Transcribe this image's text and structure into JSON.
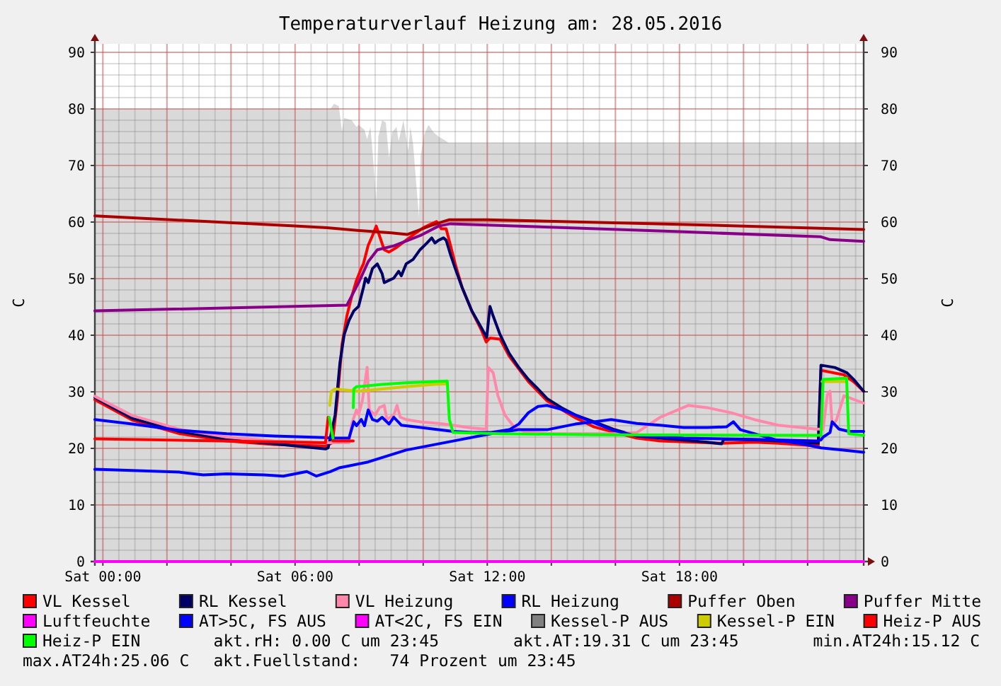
{
  "chart_data": {
    "type": "line",
    "title": "Temperaturverlauf Heizung am: 28.05.2016",
    "ylabel": "C",
    "y2label": "C",
    "xlim": [
      "2016-05-27T23:45",
      "2016-05-28T23:45"
    ],
    "xticks": [
      {
        "value": "2016-05-28T00:00",
        "label": "Sat 00:00"
      },
      {
        "value": "2016-05-28T02:00",
        "label": null
      },
      {
        "value": "2016-05-28T04:00",
        "label": null
      },
      {
        "value": "2016-05-28T06:00",
        "label": "Sat 06:00"
      },
      {
        "value": "2016-05-28T08:00",
        "label": null
      },
      {
        "value": "2016-05-28T10:00",
        "label": null
      },
      {
        "value": "2016-05-28T12:00",
        "label": "Sat 12:00"
      },
      {
        "value": "2016-05-28T14:00",
        "label": null
      },
      {
        "value": "2016-05-28T16:00",
        "label": null
      },
      {
        "value": "2016-05-28T18:00",
        "label": "Sat 18:00"
      },
      {
        "value": "2016-05-28T20:00",
        "label": null
      },
      {
        "value": "2016-05-28T22:00",
        "label": null
      }
    ],
    "ylim": [
      0,
      91.5
    ],
    "yticks": [
      0,
      10,
      20,
      30,
      40,
      50,
      60,
      70,
      80,
      90
    ],
    "y2lim": [
      0,
      91.5
    ],
    "y2ticks": [
      0,
      10,
      20,
      30,
      40,
      50,
      60,
      70,
      80,
      90
    ],
    "grid": true,
    "legend": "bottom",
    "series": [
      {
        "type": "area",
        "color": "#d9d9d9",
        "x": [
          "2016-05-27T23:45",
          "2016-05-28T07:06",
          "2016-05-28T07:13",
          "2016-05-28T07:22",
          "2016-05-28T07:28",
          "2016-05-28T07:32",
          "2016-05-28T07:46",
          "2016-05-28T07:55",
          "2016-05-28T07:59",
          "2016-05-28T08:10",
          "2016-05-28T08:15",
          "2016-05-28T08:21",
          "2016-05-28T08:25",
          "2016-05-28T08:32",
          "2016-05-28T08:36",
          "2016-05-28T08:43",
          "2016-05-28T08:50",
          "2016-05-28T08:56",
          "2016-05-28T09:02",
          "2016-05-28T09:10",
          "2016-05-28T09:14",
          "2016-05-28T09:23",
          "2016-05-28T09:32",
          "2016-05-28T09:36",
          "2016-05-28T09:41",
          "2016-05-28T09:47",
          "2016-05-28T09:52",
          "2016-05-28T09:55",
          "2016-05-28T10:02",
          "2016-05-28T10:10",
          "2016-05-28T10:19",
          "2016-05-28T10:29",
          "2016-05-28T10:43",
          "2016-05-28T10:47",
          "2016-05-28T23:42"
        ],
        "values": [
          80,
          80,
          80.9,
          80.5,
          75.9,
          78.4,
          78,
          76.8,
          77.2,
          76.3,
          74.6,
          76.8,
          72.6,
          63.8,
          75.1,
          78,
          77.6,
          71.3,
          75.9,
          76.8,
          74.3,
          78,
          72.6,
          76.8,
          73.8,
          66.8,
          60.9,
          71.7,
          75.5,
          77.2,
          75.9,
          75.1,
          74.3,
          74,
          74
        ]
      },
      {
        "name": "VL Kessel",
        "color": "#ff0000",
        "x": [
          "2016-05-27T23:45",
          "2016-05-28T00:55",
          "2016-05-28T02:23",
          "2016-05-28T03:52",
          "2016-05-28T05:20",
          "2016-05-28T06:57",
          "2016-05-28T07:10",
          "2016-05-28T07:19",
          "2016-05-28T07:28",
          "2016-05-28T07:37",
          "2016-05-28T07:46",
          "2016-05-28T07:55",
          "2016-05-28T08:04",
          "2016-05-28T08:08",
          "2016-05-28T08:17",
          "2016-05-28T08:25",
          "2016-05-28T08:32",
          "2016-05-28T08:38",
          "2016-05-28T08:47",
          "2016-05-28T08:56",
          "2016-05-28T09:10",
          "2016-05-28T09:28",
          "2016-05-28T09:45",
          "2016-05-28T10:02",
          "2016-05-28T10:16",
          "2016-05-28T10:25",
          "2016-05-28T10:34",
          "2016-05-28T10:43",
          "2016-05-28T10:51",
          "2016-05-28T11:00",
          "2016-05-28T11:13",
          "2016-05-28T11:31",
          "2016-05-28T11:49",
          "2016-05-28T11:58",
          "2016-05-28T12:05",
          "2016-05-28T12:24",
          "2016-05-28T12:41",
          "2016-05-28T13:17",
          "2016-05-28T13:52",
          "2016-05-28T14:45",
          "2016-05-28T15:20",
          "2016-05-28T16:40",
          "2016-05-28T17:24",
          "2016-05-28T19:19",
          "2016-05-28T20:20",
          "2016-05-28T21:05",
          "2016-05-28T22:07",
          "2016-05-28T22:20",
          "2016-05-28T22:25",
          "2016-05-28T23:08",
          "2016-05-28T23:26",
          "2016-05-28T23:45"
        ],
        "values": [
          28.6,
          25.0,
          22.6,
          21.3,
          20.7,
          20.4,
          21.0,
          28.4,
          38.4,
          43.4,
          46.8,
          49.7,
          51.8,
          52.6,
          55.9,
          57.6,
          59.3,
          57.6,
          55.1,
          54.7,
          55.5,
          56.8,
          58.0,
          59.1,
          59.7,
          60.1,
          58.8,
          58.8,
          55.9,
          52.6,
          48.4,
          44.3,
          40.9,
          38.8,
          39.5,
          39.3,
          36.3,
          31.8,
          28.4,
          25.4,
          23.8,
          21.8,
          21.3,
          20.9,
          21.1,
          20.9,
          20.5,
          20.5,
          33.8,
          33.0,
          31.8,
          30.1
        ]
      },
      {
        "name": "RL Kessel",
        "color": "#000066",
        "x": [
          "2016-05-27T23:45",
          "2016-05-28T00:55",
          "2016-05-28T02:23",
          "2016-05-28T03:52",
          "2016-05-28T05:20",
          "2016-05-28T06:57",
          "2016-05-28T07:02",
          "2016-05-28T07:15",
          "2016-05-28T07:24",
          "2016-05-28T07:32",
          "2016-05-28T07:41",
          "2016-05-28T07:50",
          "2016-05-28T07:59",
          "2016-05-28T08:08",
          "2016-05-28T08:12",
          "2016-05-28T08:17",
          "2016-05-28T08:25",
          "2016-05-28T08:34",
          "2016-05-28T08:43",
          "2016-05-28T08:47",
          "2016-05-28T08:56",
          "2016-05-28T09:05",
          "2016-05-28T09:14",
          "2016-05-28T09:19",
          "2016-05-28T09:28",
          "2016-05-28T09:41",
          "2016-05-28T09:54",
          "2016-05-28T10:07",
          "2016-05-28T10:16",
          "2016-05-28T10:22",
          "2016-05-28T10:29",
          "2016-05-28T10:38",
          "2016-05-28T10:43",
          "2016-05-28T10:51",
          "2016-05-28T11:00",
          "2016-05-28T11:13",
          "2016-05-28T11:31",
          "2016-05-28T11:49",
          "2016-05-28T11:59",
          "2016-05-28T12:05",
          "2016-05-28T12:11",
          "2016-05-28T12:24",
          "2016-05-28T12:41",
          "2016-05-28T12:59",
          "2016-05-28T13:17",
          "2016-05-28T13:35",
          "2016-05-28T13:52",
          "2016-05-28T14:19",
          "2016-05-28T14:45",
          "2016-05-28T15:20",
          "2016-05-28T15:56",
          "2016-05-28T16:40",
          "2016-05-28T17:24",
          "2016-05-28T18:52",
          "2016-05-28T19:19",
          "2016-05-28T19:23",
          "2016-05-28T20:20",
          "2016-05-28T21:05",
          "2016-05-28T22:20",
          "2016-05-28T22:25",
          "2016-05-28T22:51",
          "2016-05-28T23:13",
          "2016-05-28T23:26",
          "2016-05-28T23:45"
        ],
        "values": [
          29.0,
          25.3,
          23.0,
          21.6,
          20.8,
          19.9,
          20.1,
          25.9,
          35.1,
          40.1,
          42.6,
          44.3,
          45.1,
          48.4,
          50.1,
          49.3,
          51.8,
          52.6,
          50.9,
          49.3,
          49.7,
          50.1,
          51.3,
          50.5,
          52.6,
          53.4,
          55.1,
          56.3,
          57.2,
          56.3,
          56.8,
          57.2,
          56.8,
          54.3,
          51.8,
          48.4,
          44.3,
          41.3,
          39.6,
          45.1,
          43.4,
          40.1,
          36.8,
          34.3,
          32.2,
          30.5,
          28.8,
          27.2,
          25.9,
          24.7,
          23.4,
          22.2,
          21.8,
          21.1,
          20.8,
          21.6,
          21.5,
          21.3,
          20.9,
          34.7,
          34.3,
          33.4,
          32.2,
          30.1
        ]
      },
      {
        "name": "VL Heizung",
        "color": "#ff88aa",
        "x": [
          "2016-05-27T23:45",
          "2016-05-28T00:55",
          "2016-05-28T02:23",
          "2016-05-28T03:52",
          "2016-05-28T05:20",
          "2016-05-28T06:57",
          "2016-05-28T07:41",
          "2016-05-28T07:46",
          "2016-05-28T07:55",
          "2016-05-28T07:59",
          "2016-05-28T08:06",
          "2016-05-28T08:15",
          "2016-05-28T08:19",
          "2016-05-28T08:30",
          "2016-05-28T08:38",
          "2016-05-28T08:47",
          "2016-05-28T08:52",
          "2016-05-28T09:05",
          "2016-05-28T09:11",
          "2016-05-28T09:17",
          "2016-05-28T09:28",
          "2016-05-28T09:54",
          "2016-05-28T10:29",
          "2016-05-28T10:56",
          "2016-05-28T11:31",
          "2016-05-28T11:58",
          "2016-05-28T12:02",
          "2016-05-28T12:11",
          "2016-05-28T12:20",
          "2016-05-28T12:33",
          "2016-05-28T12:50",
          "2016-05-28T13:08",
          "2016-05-28T13:52",
          "2016-05-28T16:00",
          "2016-05-28T16:40",
          "2016-05-28T17:24",
          "2016-05-28T18:17",
          "2016-05-28T18:52",
          "2016-05-28T19:37",
          "2016-05-28T20:20",
          "2016-05-28T21:05",
          "2016-05-28T22:16",
          "2016-05-28T22:29",
          "2016-05-28T22:37",
          "2016-05-28T22:42",
          "2016-05-28T22:46",
          "2016-05-28T22:54",
          "2016-05-28T23:08",
          "2016-05-28T23:45"
        ],
        "values": [
          29.2,
          25.8,
          23.4,
          22.0,
          21.3,
          21.0,
          21.0,
          24.3,
          26.8,
          26.0,
          28.4,
          34.3,
          26.8,
          25.9,
          27.2,
          27.6,
          25.1,
          25.9,
          27.6,
          25.5,
          25.1,
          24.7,
          24.4,
          24.1,
          23.6,
          23.4,
          34.3,
          33.4,
          29.3,
          25.9,
          23.8,
          23.0,
          22.6,
          22.6,
          22.8,
          25.5,
          27.6,
          27.2,
          26.3,
          25.1,
          24.1,
          23.4,
          23.4,
          29.5,
          30.1,
          24.0,
          25.0,
          29.3,
          28.0
        ]
      },
      {
        "name": "RL Heizung",
        "color": "#0000ff",
        "x": [
          "2016-05-27T23:45",
          "2016-05-28T00:55",
          "2016-05-28T02:23",
          "2016-05-28T03:52",
          "2016-05-28T05:20",
          "2016-05-28T06:57",
          "2016-05-28T07:06",
          "2016-05-28T07:41",
          "2016-05-28T07:50",
          "2016-05-28T07:55",
          "2016-05-28T08:04",
          "2016-05-28T08:10",
          "2016-05-28T08:17",
          "2016-05-28T08:25",
          "2016-05-28T08:34",
          "2016-05-28T08:43",
          "2016-05-28T08:56",
          "2016-05-28T09:05",
          "2016-05-28T09:19",
          "2016-05-28T09:45",
          "2016-05-28T10:20",
          "2016-05-28T10:56",
          "2016-05-28T11:31",
          "2016-05-28T12:07",
          "2016-05-28T12:41",
          "2016-05-28T12:59",
          "2016-05-28T13:17",
          "2016-05-28T13:35",
          "2016-05-28T13:52",
          "2016-05-28T14:19",
          "2016-05-28T14:45",
          "2016-05-28T15:20",
          "2016-05-28T15:56",
          "2016-05-28T16:40",
          "2016-05-28T18:08",
          "2016-05-28T20:20",
          "2016-05-28T22:16",
          "2016-05-28T22:25",
          "2016-05-28T22:29",
          "2016-05-28T22:42",
          "2016-05-28T22:46",
          "2016-05-28T22:59",
          "2016-05-28T23:17",
          "2016-05-28T23:45"
        ],
        "values": [
          25.1,
          24.3,
          23.2,
          22.6,
          22.2,
          21.9,
          21.8,
          21.8,
          24.7,
          24.0,
          25.1,
          24.0,
          26.8,
          25.1,
          24.8,
          25.5,
          24.3,
          25.5,
          24.1,
          23.8,
          23.4,
          23.0,
          22.8,
          22.8,
          23.3,
          24.3,
          26.3,
          27.4,
          27.6,
          26.9,
          25.9,
          24.5,
          23.2,
          22.2,
          21.8,
          21.6,
          21.3,
          21.5,
          22.0,
          22.8,
          24.7,
          23.4,
          23.0,
          23.0
        ]
      },
      {
        "name": "Puffer Oben",
        "color": "#aa0000",
        "x": [
          "2016-05-27T23:45",
          "2016-05-28T06:00",
          "2016-05-28T07:00",
          "2016-05-28T08:00",
          "2016-05-28T09:00",
          "2016-05-28T09:30",
          "2016-05-28T10:18",
          "2016-05-28T10:48",
          "2016-05-28T12:00",
          "2016-05-28T18:00",
          "2016-05-28T23:45"
        ],
        "values": [
          61.1,
          59.3,
          59.0,
          58.5,
          58.1,
          57.8,
          59.5,
          60.4,
          60.4,
          59.6,
          58.7
        ]
      },
      {
        "name": "Puffer Mitte",
        "color": "#880088",
        "x": [
          "2016-05-27T23:45",
          "2016-05-28T07:37",
          "2016-05-28T07:59",
          "2016-05-28T08:17",
          "2016-05-28T08:34",
          "2016-05-28T09:05",
          "2016-05-28T09:54",
          "2016-05-28T10:29",
          "2016-05-28T10:51",
          "2016-05-28T14:28",
          "2016-05-28T18:00",
          "2016-05-28T22:25",
          "2016-05-28T22:42",
          "2016-05-28T23:45"
        ],
        "values": [
          44.3,
          45.3,
          49.3,
          53.0,
          55.1,
          55.8,
          57.6,
          59.3,
          59.7,
          59.0,
          58.3,
          57.4,
          56.9,
          56.6
        ]
      },
      {
        "name": "Luftfeuchte",
        "color": "#ff00ff",
        "x": [
          "2016-05-27T23:45",
          "2016-05-28T23:45"
        ],
        "values": [
          0,
          0
        ]
      },
      {
        "name": "AT>5C, FS AUS",
        "color": "#0000ff",
        "x": [
          "2016-05-27T23:45",
          "2016-05-28T00:55",
          "2016-05-28T02:23",
          "2016-05-28T03:08",
          "2016-05-28T03:52",
          "2016-05-28T05:02",
          "2016-05-28T05:38",
          "2016-05-28T06:22",
          "2016-05-28T06:40",
          "2016-05-28T07:06",
          "2016-05-28T07:24",
          "2016-05-28T07:41",
          "2016-05-28T08:17",
          "2016-05-28T09:28",
          "2016-05-28T10:56",
          "2016-05-28T12:07",
          "2016-05-28T12:59",
          "2016-05-28T13:52",
          "2016-05-28T14:45",
          "2016-05-28T15:20",
          "2016-05-28T15:52",
          "2016-05-28T16:40",
          "2016-05-28T17:24",
          "2016-05-28T18:08",
          "2016-05-28T18:52",
          "2016-05-28T19:28",
          "2016-05-28T19:41",
          "2016-05-28T19:54",
          "2016-05-28T20:20",
          "2016-05-28T21:05",
          "2016-05-28T21:49",
          "2016-05-28T22:25",
          "2016-05-28T23:17",
          "2016-05-28T23:45"
        ],
        "values": [
          16.3,
          16.1,
          15.8,
          15.3,
          15.5,
          15.3,
          15.1,
          15.9,
          15.1,
          15.9,
          16.6,
          16.9,
          17.6,
          19.7,
          21.3,
          22.6,
          23.3,
          23.3,
          24.3,
          24.7,
          25.1,
          24.4,
          24.1,
          23.7,
          23.7,
          23.8,
          24.7,
          23.3,
          22.6,
          21.4,
          20.8,
          20.1,
          19.6,
          19.3
        ]
      },
      {
        "name": "AT<2C, FS EIN",
        "color": "#ff00ff"
      },
      {
        "name": "Kessel-P AUS",
        "color": "#808080"
      },
      {
        "name": "Kessel-P EIN",
        "color": "#cccc00",
        "x": [
          "2016-05-28T07:05",
          "2016-05-28T07:08",
          "2016-05-28T07:15",
          "2016-05-28T07:59",
          "2016-05-28T08:43",
          "2016-05-28T09:28",
          "2016-05-28T10:20",
          "2016-05-28T10:45",
          "2016-05-28T16:00",
          "2016-05-28T22:27",
          "2016-05-28T23:12"
        ],
        "values": [
          27.6,
          30.1,
          30.5,
          30.1,
          30.5,
          30.9,
          31.3,
          31.4,
          null,
          31.8,
          31.8
        ]
      },
      {
        "name": "Heiz-P AUS",
        "color": "#ff0000",
        "x": [
          "2016-05-27T23:45",
          "2016-05-28T06:57",
          "2016-05-28T07:02",
          "2016-05-28T07:06",
          "2016-05-28T07:11",
          "2016-05-28T07:49"
        ],
        "values": [
          21.7,
          21.0,
          25.5,
          null,
          21.3,
          21.3
        ]
      },
      {
        "name": "Heiz-P EIN",
        "color": "#00ff00",
        "x": [
          "2016-05-28T07:04",
          "2016-05-28T07:11",
          "2016-05-28T07:30",
          "2016-05-28T07:49",
          "2016-05-28T07:50",
          "2016-05-28T07:55",
          "2016-05-28T08:43",
          "2016-05-28T09:28",
          "2016-05-28T10:45",
          "2016-05-28T10:49",
          "2016-05-28T10:56",
          "2016-05-28T12:24",
          "2016-05-28T15:20",
          "2016-05-28T22:25",
          "2016-05-28T22:29",
          "2016-05-28T23:13",
          "2016-05-28T23:17",
          "2016-05-28T23:45"
        ],
        "values": [
          25.5,
          21.8,
          null,
          27.2,
          30.5,
          30.9,
          31.3,
          31.6,
          31.9,
          25.1,
          22.8,
          22.6,
          22.4,
          22.3,
          32.2,
          32.4,
          22.6,
          22.3
        ]
      }
    ],
    "annotations": [
      "akt.rH: 0.00 C um 23:45",
      "akt.AT:19.31 C um 23:45",
      "min.AT24h:15.12 C",
      "max.AT24h:25.06 C",
      "akt.Fuellstand:   74 Prozent um 23:45"
    ]
  }
}
